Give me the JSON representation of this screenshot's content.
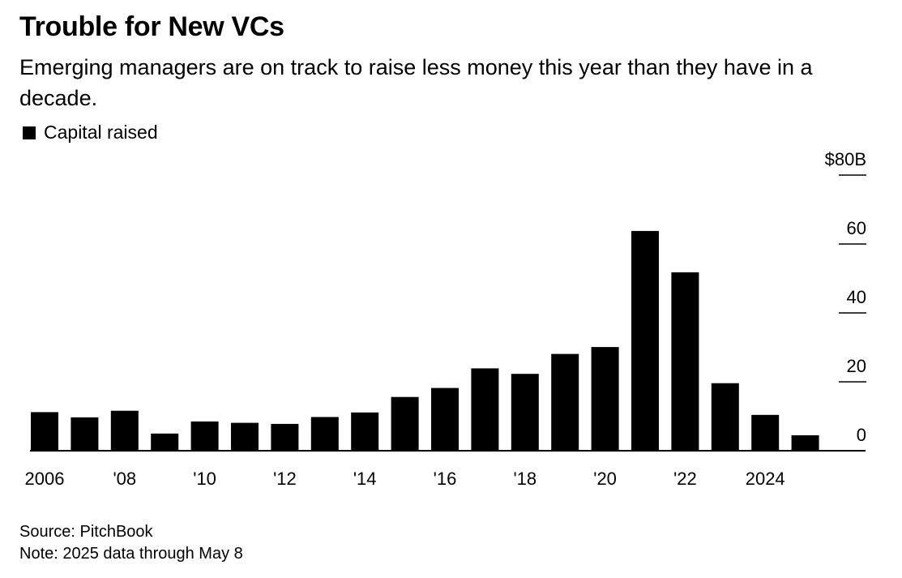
{
  "header": {
    "title": "Trouble for New VCs",
    "subtitle": "Emerging managers are on track to raise less money this year than they have in a decade."
  },
  "legend": {
    "label": "Capital raised"
  },
  "footer": {
    "source": "Source: PitchBook",
    "note": "Note: 2025 data through May 8"
  },
  "colors": {
    "bar": "#000000",
    "axis": "#000000",
    "background": "#ffffff"
  },
  "chart_data": {
    "type": "bar",
    "title": "Trouble for New VCs",
    "subtitle": "Emerging managers are on track to raise less money this year than they have in a decade.",
    "categories": [
      "2006",
      "2007",
      "2008",
      "2009",
      "2010",
      "2011",
      "2012",
      "2013",
      "2014",
      "2015",
      "2016",
      "2017",
      "2018",
      "2019",
      "2020",
      "2021",
      "2022",
      "2023",
      "2024",
      "2025"
    ],
    "x_tick_labels": [
      {
        "category": "2006",
        "label": "2006"
      },
      {
        "category": "2008",
        "label": "'08"
      },
      {
        "category": "2010",
        "label": "'10"
      },
      {
        "category": "2012",
        "label": "'12"
      },
      {
        "category": "2014",
        "label": "'14"
      },
      {
        "category": "2016",
        "label": "'16"
      },
      {
        "category": "2018",
        "label": "'18"
      },
      {
        "category": "2020",
        "label": "'20"
      },
      {
        "category": "2022",
        "label": "'22"
      },
      {
        "category": "2024",
        "label": "2024"
      }
    ],
    "series": [
      {
        "name": "Capital raised",
        "values": [
          11.2,
          9.7,
          11.6,
          5.0,
          8.5,
          8.1,
          7.8,
          9.8,
          11.1,
          15.6,
          18.2,
          23.9,
          22.3,
          28.1,
          30.1,
          63.8,
          51.8,
          19.6,
          10.4,
          4.5
        ]
      }
    ],
    "y_ticks": [
      {
        "value": 0,
        "label": "0"
      },
      {
        "value": 20,
        "label": "20"
      },
      {
        "value": 40,
        "label": "40"
      },
      {
        "value": 60,
        "label": "60"
      },
      {
        "value": 80,
        "label": "$80B"
      }
    ],
    "ylim": [
      0,
      80
    ],
    "xlabel": "",
    "ylabel": "",
    "grid": false,
    "legend_position": "top-left",
    "y_axis_position": "right"
  }
}
